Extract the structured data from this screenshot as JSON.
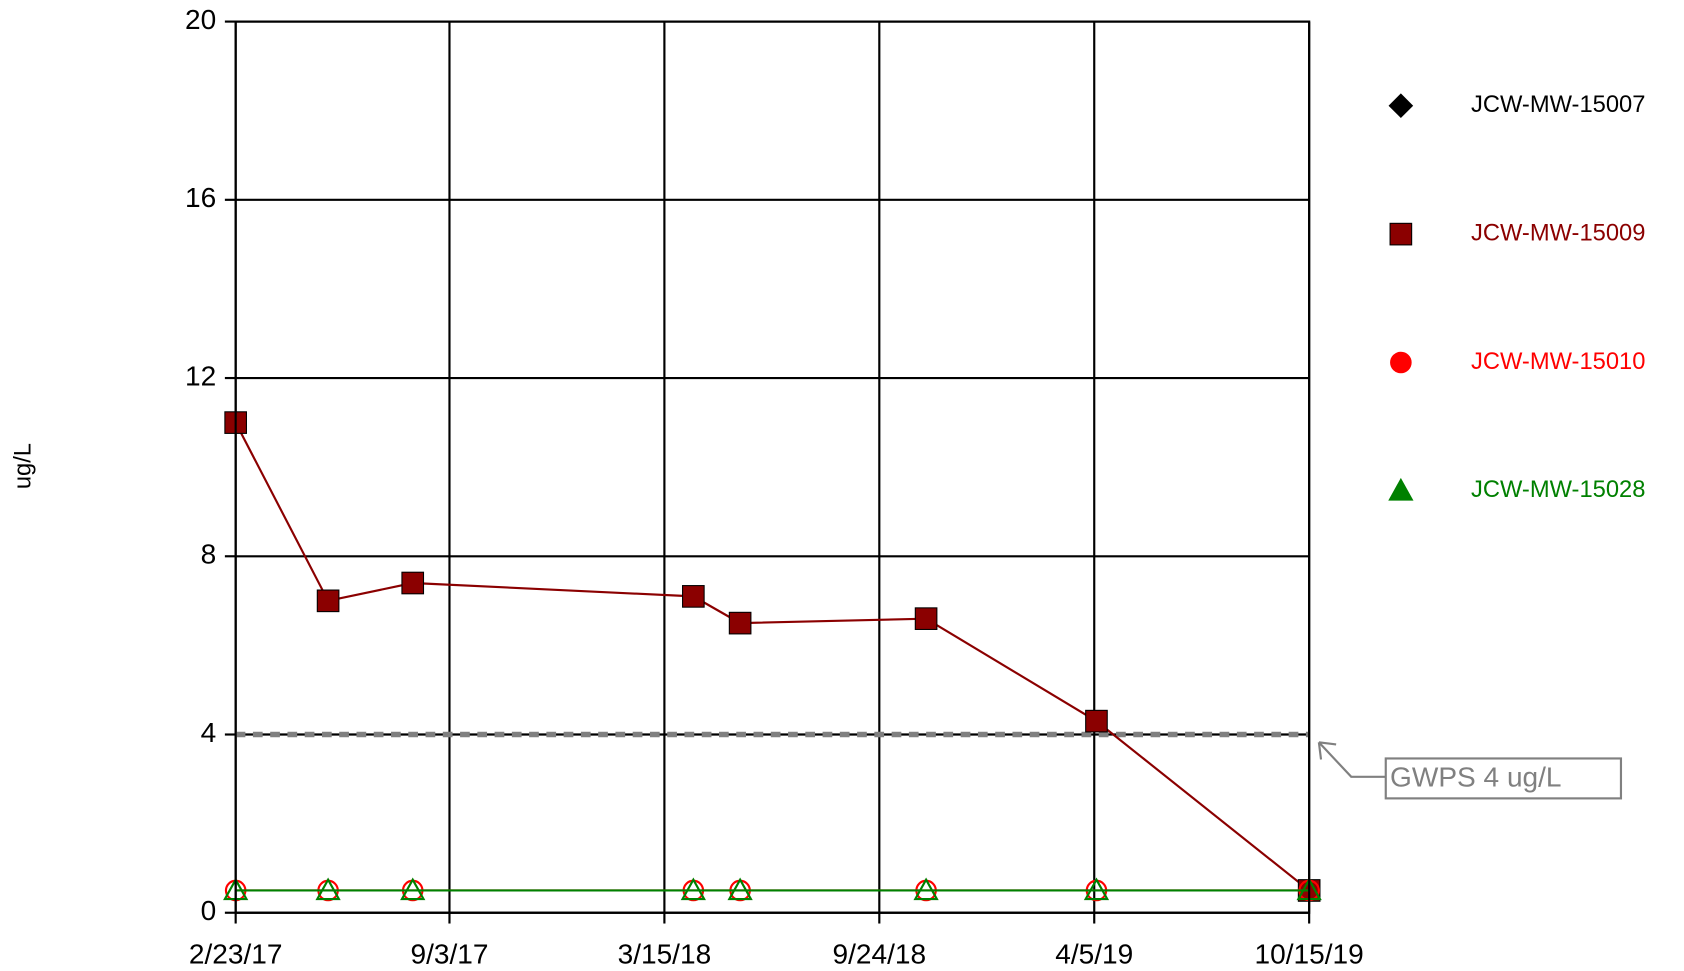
{
  "chart_data": {
    "type": "line",
    "y_label": "ug/L",
    "x": [
      "2/23/17",
      "5/17/17",
      "8/1/17",
      "4/10/18",
      "5/22/18",
      "11/5/18",
      "4/7/19",
      "10/15/19"
    ],
    "xlim": [
      "2/23/17",
      "10/15/19"
    ],
    "xticks": [
      "2/23/17",
      "9/3/17",
      "3/15/18",
      "9/24/18",
      "4/5/19",
      "10/15/19"
    ],
    "ylim": [
      0,
      20
    ],
    "yticks": [
      0,
      4,
      8,
      12,
      16,
      20
    ],
    "grid": true,
    "legend": "right",
    "series": [
      {
        "name": "JCW-MW-15007",
        "color": "#000000",
        "marker": "diamond",
        "values": [
          null,
          null,
          null,
          null,
          null,
          null,
          null,
          null
        ]
      },
      {
        "name": "JCW-MW-15009",
        "color": "#8b0000",
        "marker": "square",
        "values": [
          11,
          7,
          7.4,
          7.1,
          6.5,
          6.6,
          4.3,
          0.5
        ]
      },
      {
        "name": "JCW-MW-15010",
        "color": "#ff0000",
        "marker": "circle",
        "values": [
          0.5,
          0.5,
          0.5,
          0.5,
          0.5,
          0.5,
          0.5,
          0.5
        ]
      },
      {
        "name": "JCW-MW-15028",
        "color": "#008000",
        "marker": "triangle",
        "values": [
          0.5,
          0.5,
          0.5,
          0.5,
          0.5,
          0.5,
          0.5,
          0.5
        ]
      }
    ],
    "reference_line": {
      "value": 4,
      "label": "GWPS 4 ug/L",
      "color": "#808080"
    }
  }
}
